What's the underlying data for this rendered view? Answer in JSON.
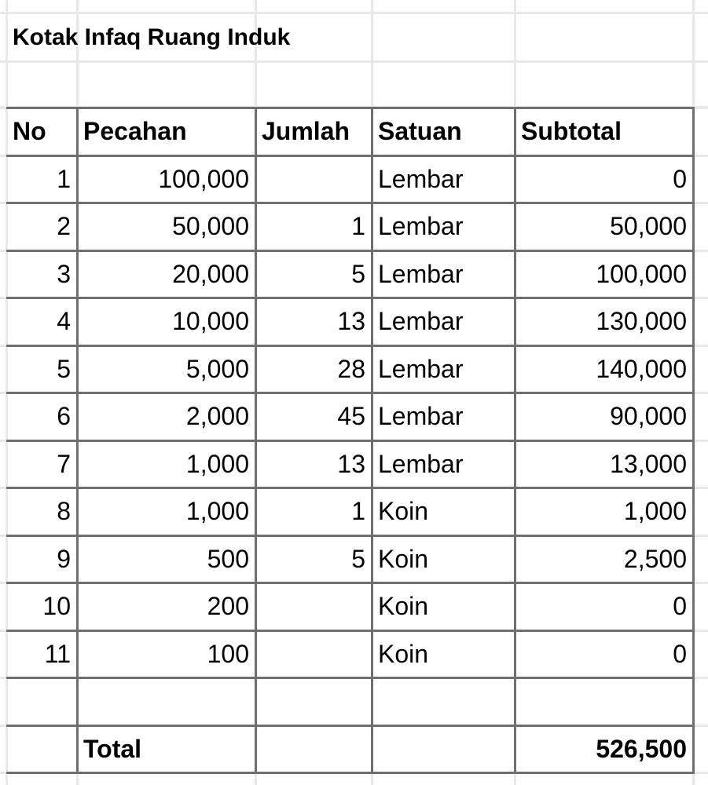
{
  "title": "Kotak Infaq Ruang Induk",
  "table": {
    "headers": [
      "No",
      "Pecahan",
      "Jumlah",
      "Satuan",
      "Subtotal"
    ],
    "rows": [
      [
        "1",
        "100,000",
        "",
        "Lembar",
        "0"
      ],
      [
        "2",
        "50,000",
        "1",
        "Lembar",
        "50,000"
      ],
      [
        "3",
        "20,000",
        "5",
        "Lembar",
        "100,000"
      ],
      [
        "4",
        "10,000",
        "13",
        "Lembar",
        "130,000"
      ],
      [
        "5",
        "5,000",
        "28",
        "Lembar",
        "140,000"
      ],
      [
        "6",
        "2,000",
        "45",
        "Lembar",
        "90,000"
      ],
      [
        "7",
        "1,000",
        "13",
        "Lembar",
        "13,000"
      ],
      [
        "8",
        "1,000",
        "1",
        "Koin",
        "1,000"
      ],
      [
        "9",
        "500",
        "5",
        "Koin",
        "2,500"
      ],
      [
        "10",
        "200",
        "",
        "Koin",
        "0"
      ],
      [
        "11",
        "100",
        "",
        "Koin",
        "0"
      ]
    ],
    "total_label": "Total",
    "total_value": "526,500"
  }
}
